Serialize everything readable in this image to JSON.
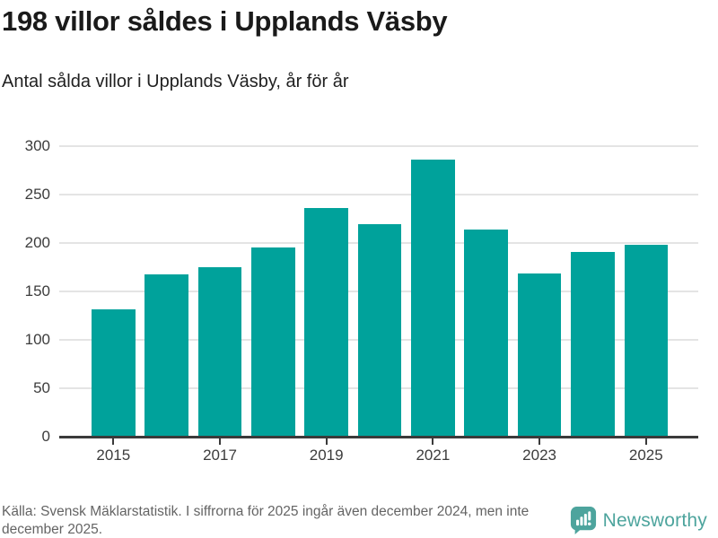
{
  "header": {
    "title": "198 villor såldes i Upplands Väsby",
    "subtitle": "Antal sålda villor i Upplands Väsby, år för år"
  },
  "chart_data": {
    "type": "bar",
    "categories": [
      "2015",
      "2016",
      "2017",
      "2018",
      "2019",
      "2020",
      "2021",
      "2022",
      "2023",
      "2024",
      "2025"
    ],
    "values": [
      131,
      167,
      175,
      195,
      236,
      219,
      286,
      213,
      168,
      190,
      198
    ],
    "title": "198 villor såldes i Upplands Väsby",
    "subtitle": "Antal sålda villor i Upplands Väsby, år för år",
    "xlabel": "",
    "ylabel": "",
    "ylim": [
      0,
      300
    ],
    "yticks": [
      0,
      50,
      100,
      150,
      200,
      250,
      300
    ],
    "xtick_labels": [
      "2015",
      "2017",
      "2019",
      "2021",
      "2023",
      "2025"
    ],
    "grid": "horizontal",
    "legend": "none",
    "bar_color": "#00a29b"
  },
  "footer": {
    "source_text": "Källa: Svensk Mäklarstatistik. I siffrorna för 2025 ingår även december 2024, men inte december 2025.",
    "brand": {
      "name": "Newsworthy",
      "color": "#4da49d",
      "icon": "newsworthy-chart-bubble-icon"
    }
  }
}
